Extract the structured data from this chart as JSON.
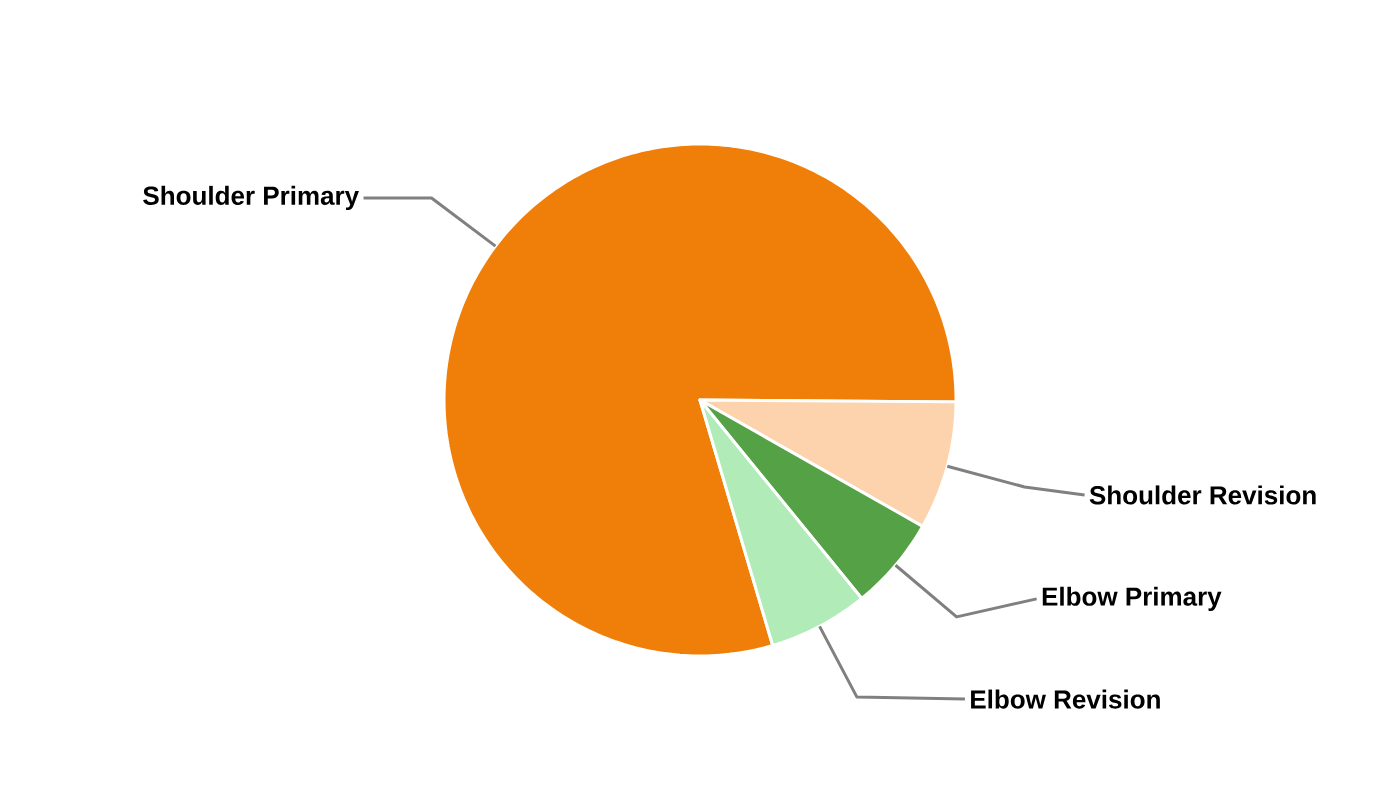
{
  "chart_data": {
    "type": "pie",
    "categories": [
      "Shoulder Primary",
      "Shoulder Revision",
      "Elbow Primary",
      "Elbow Revision"
    ],
    "values": [
      79.7,
      8.1,
      5.9,
      6.3
    ],
    "colors": [
      "#f07f09",
      "#fcd3ad",
      "#54a146",
      "#b0ebb8"
    ]
  }
}
